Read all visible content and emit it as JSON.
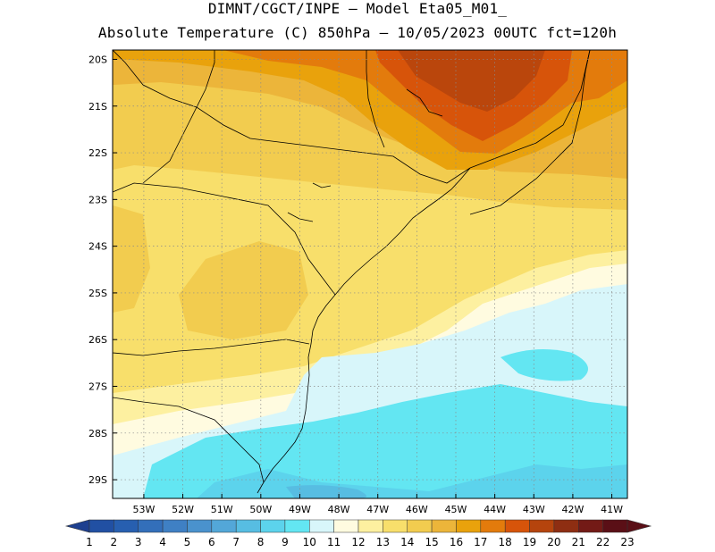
{
  "title": {
    "line1": "DIMNT/CGCT/INPE –  Model Eta05_M01_",
    "line2": "Absolute Temperature (C) 850hPa –  10/05/2023 00UTC fct=120h"
  },
  "map": {
    "lat_labels": [
      "20S",
      "21S",
      "22S",
      "23S",
      "24S",
      "25S",
      "26S",
      "27S",
      "28S",
      "29S"
    ],
    "lon_labels": [
      "53W",
      "52W",
      "51W",
      "50W",
      "49W",
      "48W",
      "47W",
      "46W",
      "45W",
      "44W",
      "43W",
      "42W",
      "41W"
    ],
    "lat_range": [
      -29.4,
      -19.8
    ],
    "lon_range": [
      -53.8,
      -40.6
    ],
    "grid_lines": "dotted"
  },
  "colorbar": {
    "labels": [
      "1",
      "2",
      "3",
      "4",
      "5",
      "6",
      "7",
      "8",
      "9",
      "10",
      "11",
      "12",
      "13",
      "14",
      "15",
      "16",
      "17",
      "18",
      "19",
      "20",
      "21",
      "22",
      "23"
    ],
    "colors": [
      "#1d3f8f",
      "#2150a3",
      "#275fb0",
      "#336fba",
      "#3f80c4",
      "#4a92cd",
      "#53a7d8",
      "#57bde2",
      "#5cd3ec",
      "#63e6f2",
      "#d8f6fa",
      "#fffbe0",
      "#fdf0a0",
      "#f8df6b",
      "#f2cc4f",
      "#ecb53a",
      "#e9a20c",
      "#e37b0c",
      "#d7540a",
      "#b5440d",
      "#8e2e12",
      "#731a16",
      "#5a0f16"
    ]
  }
}
